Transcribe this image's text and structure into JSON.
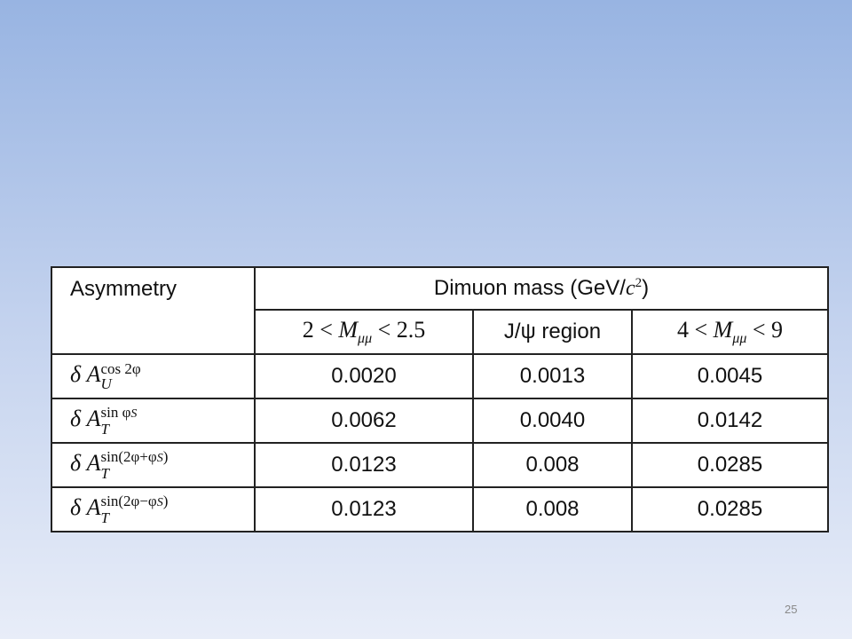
{
  "slide": {
    "table": {
      "header": {
        "first": "Asymmetry",
        "group": {
          "text": "Dimuon mass (GeV/",
          "var": "c",
          "exp": "2",
          "close": ")"
        },
        "columns": [
          {
            "pre": "2 < ",
            "var": "M",
            "sub": "μμ",
            "post": " < 2.5"
          },
          {
            "text": "J/ψ region"
          },
          {
            "pre": "4 < ",
            "var": "M",
            "sub": "μμ",
            "post": " < 9"
          }
        ]
      },
      "rows": [
        {
          "label": {
            "delta": "δ",
            "var": "A",
            "sub": "U",
            "sup": "cos 2φ"
          },
          "cells": [
            "0.0020",
            "0.0013",
            "0.0045"
          ]
        },
        {
          "label": {
            "delta": "δ",
            "var": "A",
            "sub": "T",
            "sup": "sin φ",
            "supsub": "S"
          },
          "cells": [
            "0.0062",
            "0.0040",
            "0.0142"
          ]
        },
        {
          "label": {
            "delta": "δ",
            "var": "A",
            "sub": "T",
            "sup": "sin(2φ+φ",
            "supsub": "S",
            "supclose": ")"
          },
          "cells": [
            "0.0123",
            "0.008",
            "0.0285"
          ]
        },
        {
          "label": {
            "delta": "δ",
            "var": "A",
            "sub": "T",
            "sup": "sin(2φ−φ",
            "supsub": "S",
            "supclose": ")"
          },
          "cells": [
            "0.0123",
            "0.008",
            "0.0285"
          ]
        }
      ]
    },
    "page_number": "25"
  }
}
